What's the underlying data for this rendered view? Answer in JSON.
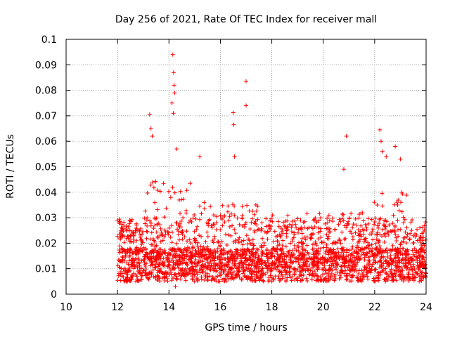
{
  "chart_data": {
    "type": "scatter",
    "title": "Day 256 of 2021, Rate Of TEC Index for receiver mall",
    "xlabel": "GPS time / hours",
    "ylabel": "ROTI / TECUs",
    "xlim": [
      10,
      24
    ],
    "ylim": [
      0,
      0.1
    ],
    "x_ticks": [
      10,
      12,
      14,
      16,
      18,
      20,
      22,
      24
    ],
    "x_tick_labels": [
      "10",
      "12",
      "14",
      "16",
      "18",
      "20",
      "22",
      "24"
    ],
    "y_ticks": [
      0,
      0.01,
      0.02,
      0.03,
      0.04,
      0.05,
      0.06,
      0.07,
      0.08,
      0.09,
      0.1
    ],
    "y_tick_labels": [
      "0",
      "0.01",
      "0.02",
      "0.03",
      "0.04",
      "0.05",
      "0.06",
      "0.07",
      "0.08",
      "0.09",
      "0.1"
    ],
    "grid": true,
    "marker": "+",
    "series": [
      {
        "name": "ROTI",
        "color": "#ff0000",
        "x_range": [
          12,
          24
        ],
        "typical_range": [
          0.005,
          0.03
        ],
        "notable_points": [
          {
            "x": 13.25,
            "y": 0.0705
          },
          {
            "x": 13.3,
            "y": 0.065
          },
          {
            "x": 13.35,
            "y": 0.062
          },
          {
            "x": 14.15,
            "y": 0.094
          },
          {
            "x": 14.18,
            "y": 0.087
          },
          {
            "x": 14.2,
            "y": 0.082
          },
          {
            "x": 14.22,
            "y": 0.079
          },
          {
            "x": 14.12,
            "y": 0.075
          },
          {
            "x": 14.17,
            "y": 0.071
          },
          {
            "x": 14.3,
            "y": 0.057
          },
          {
            "x": 15.2,
            "y": 0.054
          },
          {
            "x": 16.5,
            "y": 0.0712
          },
          {
            "x": 16.52,
            "y": 0.0665
          },
          {
            "x": 16.55,
            "y": 0.054
          },
          {
            "x": 17.0,
            "y": 0.0835
          },
          {
            "x": 17.0,
            "y": 0.074
          },
          {
            "x": 20.9,
            "y": 0.062
          },
          {
            "x": 20.8,
            "y": 0.049
          },
          {
            "x": 22.2,
            "y": 0.0645
          },
          {
            "x": 22.25,
            "y": 0.06
          },
          {
            "x": 22.3,
            "y": 0.056
          },
          {
            "x": 22.45,
            "y": 0.054
          },
          {
            "x": 22.8,
            "y": 0.058
          },
          {
            "x": 23.0,
            "y": 0.053
          },
          {
            "x": 14.25,
            "y": 0.003
          },
          {
            "x": 12.0,
            "y": 0.029
          }
        ]
      }
    ]
  }
}
